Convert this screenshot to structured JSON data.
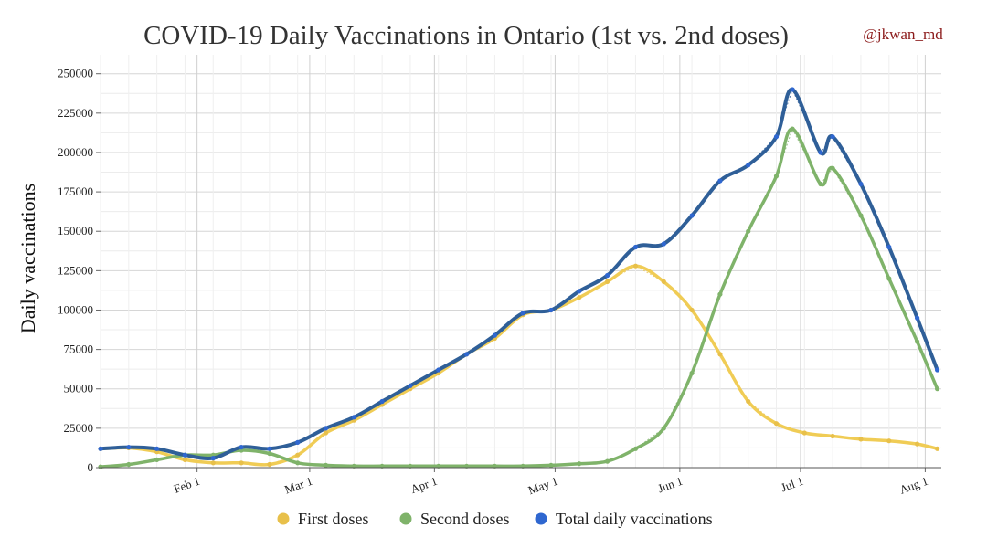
{
  "chart_data": {
    "type": "line",
    "title": "COVID-19 Daily Vaccinations in Ontario (1st vs. 2nd doses)",
    "credit": "@jkwan_md",
    "ylabel": "Daily vaccinations",
    "xlabel": "",
    "ylim": [
      0,
      262000
    ],
    "grid": true,
    "legend_position": "bottom",
    "y_ticks": [
      0,
      25000,
      50000,
      75000,
      100000,
      125000,
      150000,
      175000,
      200000,
      225000,
      250000
    ],
    "y_tick_labels": [
      "0",
      "25000",
      "50000",
      "75000",
      "100000",
      "125000",
      "150000",
      "175000",
      "200000",
      "225000",
      "250000"
    ],
    "x_ticks": [
      "Feb 1",
      "Mar 1",
      "Apr 1",
      "May 1",
      "Jun 1",
      "Jul 1",
      "Aug 1"
    ],
    "x_range": [
      "2021-01-08",
      "2021-08-05"
    ],
    "series_avg_comment_free": true,
    "series": [
      {
        "name": "First doses",
        "color": "#e8c04a",
        "smooth_color": "#f0cc55",
        "points": [
          [
            "2021-01-08",
            12000
          ],
          [
            "2021-01-15",
            12500
          ],
          [
            "2021-01-22",
            10000
          ],
          [
            "2021-01-29",
            5000
          ],
          [
            "2021-02-05",
            3000
          ],
          [
            "2021-02-12",
            3000
          ],
          [
            "2021-02-19",
            2000
          ],
          [
            "2021-02-26",
            8000
          ],
          [
            "2021-03-05",
            22000
          ],
          [
            "2021-03-12",
            30000
          ],
          [
            "2021-03-19",
            40000
          ],
          [
            "2021-03-26",
            50000
          ],
          [
            "2021-04-02",
            60000
          ],
          [
            "2021-04-09",
            72000
          ],
          [
            "2021-04-16",
            82000
          ],
          [
            "2021-04-23",
            97000
          ],
          [
            "2021-04-30",
            100000
          ],
          [
            "2021-05-07",
            108000
          ],
          [
            "2021-05-14",
            118000
          ],
          [
            "2021-05-21",
            128000
          ],
          [
            "2021-05-28",
            118000
          ],
          [
            "2021-06-04",
            100000
          ],
          [
            "2021-06-11",
            72000
          ],
          [
            "2021-06-18",
            42000
          ],
          [
            "2021-06-25",
            28000
          ],
          [
            "2021-07-02",
            22000
          ],
          [
            "2021-07-09",
            20000
          ],
          [
            "2021-07-16",
            18000
          ],
          [
            "2021-07-23",
            17000
          ],
          [
            "2021-07-30",
            15000
          ],
          [
            "2021-08-04",
            12000
          ]
        ]
      },
      {
        "name": "Second doses",
        "color": "#7fb36a",
        "smooth_color": "#7fb36a",
        "points": [
          [
            "2021-01-08",
            500
          ],
          [
            "2021-01-15",
            2000
          ],
          [
            "2021-01-22",
            5000
          ],
          [
            "2021-01-29",
            8000
          ],
          [
            "2021-02-05",
            8000
          ],
          [
            "2021-02-12",
            11000
          ],
          [
            "2021-02-19",
            9000
          ],
          [
            "2021-02-26",
            3000
          ],
          [
            "2021-03-05",
            1500
          ],
          [
            "2021-03-12",
            1000
          ],
          [
            "2021-03-19",
            1000
          ],
          [
            "2021-03-26",
            1000
          ],
          [
            "2021-04-02",
            1000
          ],
          [
            "2021-04-09",
            1000
          ],
          [
            "2021-04-16",
            1000
          ],
          [
            "2021-04-23",
            1000
          ],
          [
            "2021-04-30",
            1500
          ],
          [
            "2021-05-07",
            2500
          ],
          [
            "2021-05-14",
            4000
          ],
          [
            "2021-05-21",
            12000
          ],
          [
            "2021-05-28",
            25000
          ],
          [
            "2021-06-04",
            60000
          ],
          [
            "2021-06-11",
            110000
          ],
          [
            "2021-06-18",
            150000
          ],
          [
            "2021-06-25",
            185000
          ],
          [
            "2021-06-29",
            215000
          ],
          [
            "2021-07-06",
            180000
          ],
          [
            "2021-07-09",
            190000
          ],
          [
            "2021-07-16",
            160000
          ],
          [
            "2021-07-23",
            120000
          ],
          [
            "2021-07-30",
            80000
          ],
          [
            "2021-08-04",
            50000
          ]
        ]
      },
      {
        "name": "Total daily vaccinations",
        "color": "#2f5f98",
        "marker_color": "#2f67d0",
        "smooth_color": "#2f5f98",
        "points": [
          [
            "2021-01-08",
            12000
          ],
          [
            "2021-01-15",
            13000
          ],
          [
            "2021-01-22",
            12000
          ],
          [
            "2021-01-29",
            8000
          ],
          [
            "2021-02-05",
            6000
          ],
          [
            "2021-02-12",
            13000
          ],
          [
            "2021-02-19",
            12000
          ],
          [
            "2021-02-26",
            16000
          ],
          [
            "2021-03-05",
            25000
          ],
          [
            "2021-03-12",
            32000
          ],
          [
            "2021-03-19",
            42000
          ],
          [
            "2021-03-26",
            52000
          ],
          [
            "2021-04-02",
            62000
          ],
          [
            "2021-04-09",
            72000
          ],
          [
            "2021-04-16",
            84000
          ],
          [
            "2021-04-23",
            98000
          ],
          [
            "2021-04-30",
            100000
          ],
          [
            "2021-05-07",
            112000
          ],
          [
            "2021-05-14",
            122000
          ],
          [
            "2021-05-21",
            140000
          ],
          [
            "2021-05-28",
            142000
          ],
          [
            "2021-06-04",
            160000
          ],
          [
            "2021-06-11",
            182000
          ],
          [
            "2021-06-18",
            192000
          ],
          [
            "2021-06-25",
            210000
          ],
          [
            "2021-06-29",
            240000
          ],
          [
            "2021-07-06",
            200000
          ],
          [
            "2021-07-09",
            210000
          ],
          [
            "2021-07-16",
            180000
          ],
          [
            "2021-07-23",
            140000
          ],
          [
            "2021-07-30",
            95000
          ],
          [
            "2021-08-04",
            62000
          ]
        ]
      }
    ]
  }
}
